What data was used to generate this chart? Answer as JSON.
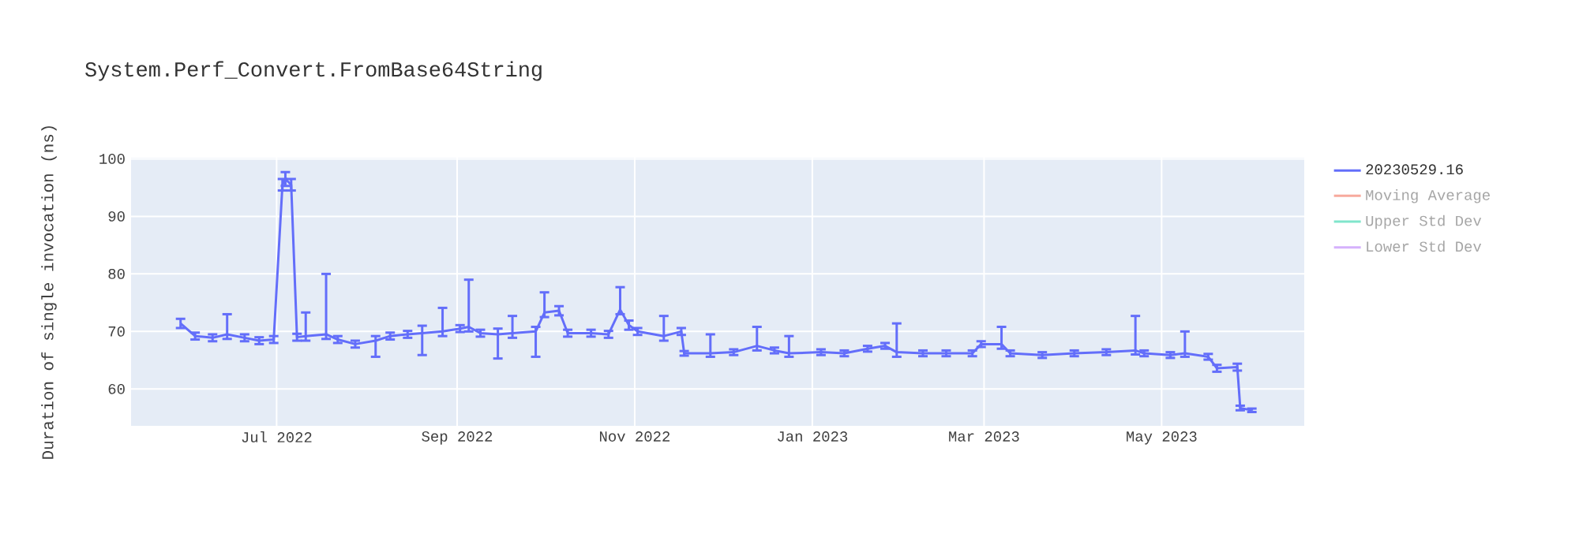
{
  "chart_data": {
    "type": "line",
    "title": "System.Perf_Convert.FromBase64String",
    "ylabel": "Duration of single invocation (ns)",
    "x": [
      "2022-05-29",
      "2022-06-03",
      "2022-06-09",
      "2022-06-14",
      "2022-06-20",
      "2022-06-25",
      "2022-06-30",
      "2022-07-03",
      "2022-07-04",
      "2022-07-06",
      "2022-07-08",
      "2022-07-11",
      "2022-07-18",
      "2022-07-22",
      "2022-07-28",
      "2022-08-04",
      "2022-08-09",
      "2022-08-15",
      "2022-08-20",
      "2022-08-27",
      "2022-09-02",
      "2022-09-05",
      "2022-09-09",
      "2022-09-15",
      "2022-09-20",
      "2022-09-28",
      "2022-10-01",
      "2022-10-06",
      "2022-10-09",
      "2022-10-17",
      "2022-10-23",
      "2022-10-27",
      "2022-10-30",
      "2022-11-02",
      "2022-11-11",
      "2022-11-17",
      "2022-11-18",
      "2022-11-27",
      "2022-12-05",
      "2022-12-13",
      "2022-12-19",
      "2022-12-24",
      "2023-01-04",
      "2023-01-12",
      "2023-01-20",
      "2023-01-26",
      "2023-01-30",
      "2023-02-08",
      "2023-02-16",
      "2023-02-25",
      "2023-02-28",
      "2023-03-07",
      "2023-03-10",
      "2023-03-21",
      "2023-04-01",
      "2023-04-12",
      "2023-04-22",
      "2023-04-25",
      "2023-05-04",
      "2023-05-09",
      "2023-05-17",
      "2023-05-20",
      "2023-05-27",
      "2023-05-28",
      "2023-06-01"
    ],
    "series": [
      {
        "name": "20230529.16",
        "color": "#636efa",
        "values": [
          71.4,
          69.2,
          68.9,
          69.5,
          68.9,
          68.4,
          68.6,
          95.5,
          96.5,
          95.5,
          69.0,
          69.2,
          69.5,
          68.6,
          67.8,
          68.4,
          69.2,
          69.5,
          69.7,
          70.0,
          70.5,
          70.8,
          69.7,
          69.5,
          69.7,
          70.0,
          73.3,
          73.6,
          69.7,
          69.7,
          69.5,
          73.8,
          71.1,
          70.0,
          69.2,
          70.0,
          66.2,
          66.2,
          66.4,
          67.5,
          66.7,
          66.2,
          66.4,
          66.2,
          67.0,
          67.5,
          66.4,
          66.2,
          66.2,
          66.2,
          67.8,
          67.8,
          66.2,
          65.9,
          66.2,
          66.4,
          66.7,
          66.2,
          65.9,
          66.2,
          65.6,
          63.6,
          63.8,
          56.7,
          56.3
        ],
        "errors": [
          0.8,
          0.6,
          0.6,
          [
            68.7,
            73.0
          ],
          0.6,
          0.6,
          0.6,
          1,
          1.2,
          1,
          0.6,
          [
            68.4,
            73.3
          ],
          [
            68.7,
            80.0
          ],
          0.6,
          0.6,
          [
            65.6,
            69.2
          ],
          0.6,
          0.6,
          [
            65.9,
            71.0
          ],
          [
            69.2,
            74.1
          ],
          0.6,
          [
            70.0,
            79.0
          ],
          0.6,
          [
            65.3,
            70.5
          ],
          [
            68.9,
            72.7
          ],
          [
            65.6,
            70.8
          ],
          [
            72.5,
            76.8
          ],
          0.8,
          0.6,
          0.6,
          0.6,
          [
            73.0,
            77.7
          ],
          0.8,
          0.6,
          [
            68.4,
            72.7
          ],
          0.6,
          0.4,
          [
            65.6,
            69.5
          ],
          0.5,
          [
            66.7,
            70.8
          ],
          0.5,
          [
            65.6,
            69.2
          ],
          0.5,
          0.5,
          0.5,
          0.5,
          [
            65.6,
            71.4
          ],
          0.5,
          0.5,
          0.5,
          0.5,
          [
            67.0,
            70.8
          ],
          0.5,
          0.5,
          0.5,
          0.5,
          [
            66.0,
            72.7
          ],
          0.5,
          0.5,
          [
            65.6,
            70.0
          ],
          0.5,
          0.6,
          0.6,
          0.4,
          0.3
        ]
      },
      {
        "name": "Moving Average",
        "color": "#f7aa9d",
        "values": [
          null,
          null,
          null,
          null,
          null,
          null,
          null,
          null,
          null,
          null,
          null,
          null,
          null,
          null,
          null,
          null,
          null,
          null,
          null,
          null,
          null,
          null,
          null,
          null,
          null,
          null,
          null,
          null,
          null,
          null,
          null,
          null,
          null,
          null,
          null,
          null,
          null,
          null,
          null,
          null,
          null,
          null,
          null,
          null,
          null,
          null,
          null,
          null,
          null,
          null,
          null,
          null,
          null,
          null,
          null,
          null,
          null,
          null,
          null,
          null,
          null,
          null,
          null,
          null,
          null
        ]
      },
      {
        "name": "Upper Std Dev",
        "color": "#80e5cb",
        "values": [
          null,
          null,
          null,
          null,
          null,
          null,
          null,
          null,
          null,
          null,
          null,
          null,
          null,
          null,
          null,
          null,
          null,
          null,
          null,
          null,
          null,
          null,
          null,
          null,
          null,
          null,
          null,
          null,
          null,
          null,
          null,
          null,
          null,
          null,
          null,
          null,
          null,
          null,
          null,
          null,
          null,
          null,
          null,
          null,
          null,
          null,
          null,
          null,
          null,
          null,
          null,
          null,
          null,
          null,
          null,
          null,
          null,
          null,
          null,
          null,
          null,
          null,
          null,
          null,
          null
        ]
      },
      {
        "name": "Lower Std Dev",
        "color": "#d5b1fc",
        "values": [
          null,
          null,
          null,
          null,
          null,
          null,
          null,
          null,
          null,
          null,
          null,
          null,
          null,
          null,
          null,
          null,
          null,
          null,
          null,
          null,
          null,
          null,
          null,
          null,
          null,
          null,
          null,
          null,
          null,
          null,
          null,
          null,
          null,
          null,
          null,
          null,
          null,
          null,
          null,
          null,
          null,
          null,
          null,
          null,
          null,
          null,
          null,
          null,
          null,
          null,
          null,
          null,
          null,
          null,
          null,
          null,
          null,
          null,
          null,
          null,
          null,
          null,
          null,
          null,
          null
        ]
      }
    ],
    "xlim": [
      "2022-05-12",
      "2023-06-19"
    ],
    "ylim": [
      53.6,
      100.2
    ],
    "xticks": [
      {
        "value": "2022-07-01",
        "label": "Jul 2022"
      },
      {
        "value": "2022-09-01",
        "label": "Sep 2022"
      },
      {
        "value": "2022-11-01",
        "label": "Nov 2022"
      },
      {
        "value": "2023-01-01",
        "label": "Jan 2023"
      },
      {
        "value": "2023-03-01",
        "label": "Mar 2023"
      },
      {
        "value": "2023-05-01",
        "label": "May 2023"
      }
    ],
    "yticks": [
      60,
      70,
      80,
      90,
      100
    ],
    "grid": true,
    "legend": "right",
    "line_style": "solid"
  }
}
